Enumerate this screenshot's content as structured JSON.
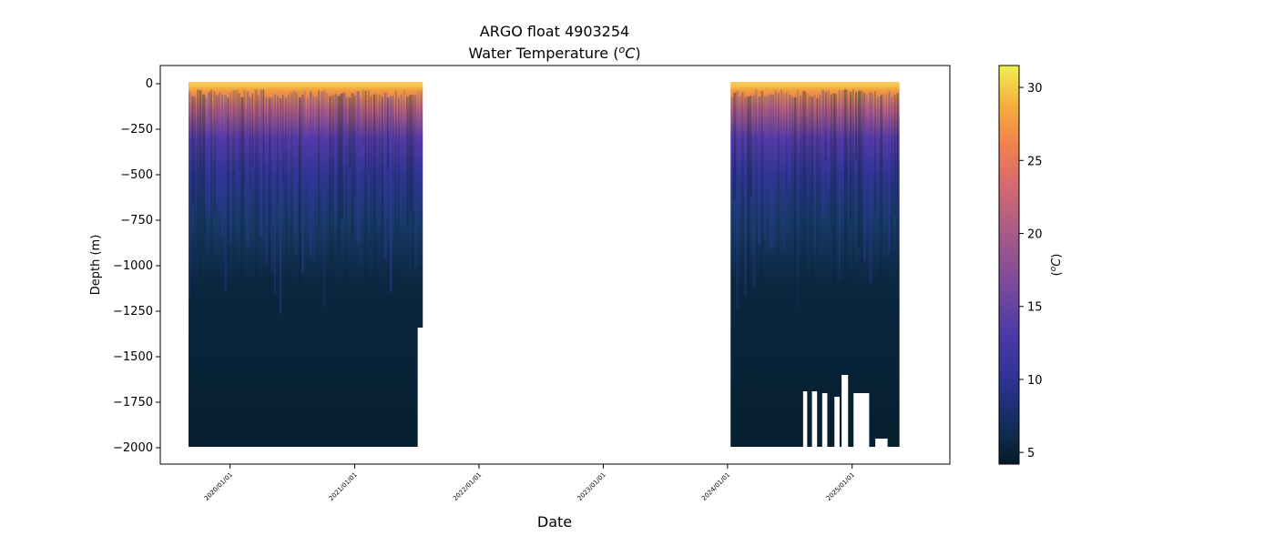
{
  "chart_data": {
    "type": "heatmap",
    "title": "ARGO float 4903254",
    "subtitle_prefix": "Water Temperature (",
    "subtitle_unit_sup": "o",
    "subtitle_unit_base": "C",
    "subtitle_suffix": ")",
    "xlabel": "Date",
    "ylabel": "Depth (m)",
    "colorbar_label_prefix": "(",
    "colorbar_label_sup": "o",
    "colorbar_label_base": "C",
    "colorbar_label_suffix": ")",
    "colormap": "thermal",
    "colorbar_range": [
      4.2,
      31.5
    ],
    "colorbar_ticks": [
      "5",
      "10",
      "15",
      "20",
      "25",
      "30"
    ],
    "colorbar_tick_values": [
      5,
      10,
      15,
      20,
      25,
      30
    ],
    "ylim": [
      -2090,
      100
    ],
    "xlim": [
      "2019-06-10",
      "2025-10-15"
    ],
    "y_ticks": [
      "0",
      "−250",
      "−500",
      "−750",
      "−1000",
      "−1250",
      "−1500",
      "−1750",
      "−2000"
    ],
    "y_tick_values": [
      0,
      -250,
      -500,
      -750,
      -1000,
      -1250,
      -1500,
      -1750,
      -2000
    ],
    "x_ticks": [
      "2020/01/01",
      "2021/01/01",
      "2022/01/01",
      "2023/01/01",
      "2024/01/01",
      "2025/01/01"
    ],
    "x_tick_values": [
      "2020-01-01",
      "2021-01-01",
      "2022-01-01",
      "2023-01-01",
      "2024-01-01",
      "2025-01-01"
    ],
    "data_segments": [
      {
        "start": "2019-09-01",
        "end": "2021-07-20",
        "max_depth": -1995
      },
      {
        "start": "2024-01-10",
        "end": "2025-05-20",
        "max_depth": -1995
      }
    ],
    "temperature_profile": [
      {
        "depth": 0,
        "temp": 28
      },
      {
        "depth": -100,
        "temp": 22
      },
      {
        "depth": -250,
        "temp": 14
      },
      {
        "depth": -500,
        "temp": 9.5
      },
      {
        "depth": -750,
        "temp": 7
      },
      {
        "depth": -1000,
        "temp": 5.5
      },
      {
        "depth": -1500,
        "temp": 4.6
      },
      {
        "depth": -2000,
        "temp": 4.3
      }
    ],
    "colors": {
      "background": "#ffffff",
      "deep": "#06202e",
      "mid": "#2f2f9a",
      "warm": "#f08a45",
      "hot": "#f5e94a"
    }
  }
}
